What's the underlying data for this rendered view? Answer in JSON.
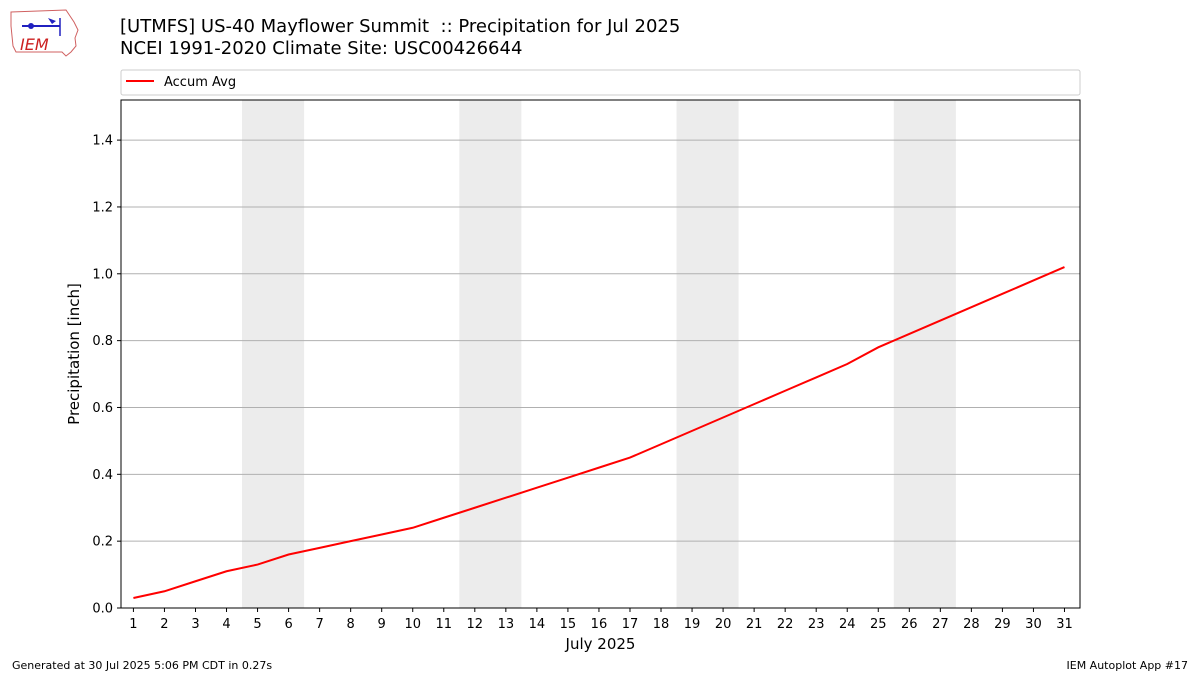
{
  "header": {
    "title_line1": "[UTMFS] US-40 Mayflower Summit  :: Precipitation for Jul 2025",
    "title_line2": "NCEI 1991-2020 Climate Site: USC00426644"
  },
  "logo": {
    "text": "IEM",
    "icon": "iem-iowa-logo-icon"
  },
  "footer": {
    "left": "Generated at 30 Jul 2025 5:06 PM CDT in 0.27s",
    "right": "IEM Autoplot App #17"
  },
  "colors": {
    "series": "#ff0000",
    "weekend_band": "#ececec",
    "grid": "#b0b0b0"
  },
  "chart_data": {
    "type": "line",
    "title": "[UTMFS] US-40 Mayflower Summit  :: Precipitation for Jul 2025",
    "xlabel": "July 2025",
    "ylabel": "Precipitation [inch]",
    "xlim": [
      0.6,
      31.5
    ],
    "ylim": [
      0,
      1.52
    ],
    "x_ticks": [
      1,
      2,
      3,
      4,
      5,
      6,
      7,
      8,
      9,
      10,
      11,
      12,
      13,
      14,
      15,
      16,
      17,
      18,
      19,
      20,
      21,
      22,
      23,
      24,
      25,
      26,
      27,
      28,
      29,
      30,
      31
    ],
    "y_ticks": [
      "0.0",
      "0.2",
      "0.4",
      "0.6",
      "0.8",
      "1.0",
      "1.2",
      "1.4"
    ],
    "grid": "y-major",
    "legend": {
      "placement": "top, above plot",
      "entries": [
        "Accum Avg"
      ]
    },
    "shaded_days": [
      [
        5,
        6
      ],
      [
        12,
        13
      ],
      [
        19,
        20
      ],
      [
        26,
        27
      ]
    ],
    "series": [
      {
        "name": "Accum Avg",
        "x": [
          1,
          2,
          3,
          4,
          5,
          6,
          7,
          8,
          9,
          10,
          11,
          12,
          13,
          14,
          15,
          16,
          17,
          18,
          19,
          20,
          21,
          22,
          23,
          24,
          25,
          26,
          27,
          28,
          29,
          30,
          31
        ],
        "values": [
          0.03,
          0.05,
          0.08,
          0.11,
          0.13,
          0.16,
          0.18,
          0.2,
          0.22,
          0.24,
          0.27,
          0.3,
          0.33,
          0.36,
          0.39,
          0.42,
          0.45,
          0.49,
          0.53,
          0.57,
          0.61,
          0.65,
          0.69,
          0.73,
          0.78,
          0.82,
          0.86,
          0.9,
          0.94,
          0.98,
          1.02
        ]
      }
    ]
  }
}
